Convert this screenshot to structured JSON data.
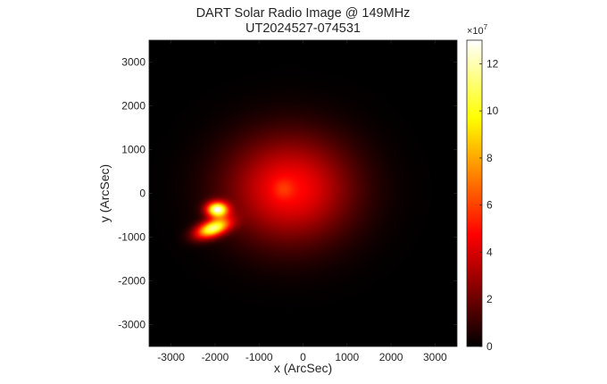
{
  "chart_data": {
    "type": "heatmap",
    "title": "DART Solar Radio Image @ 149MHz",
    "subtitle": "UT2024527-074531",
    "xlabel": "x (ArcSec)",
    "ylabel": "y (ArcSec)",
    "xlim": [
      -3500,
      3500
    ],
    "ylim": [
      -3500,
      3500
    ],
    "xticks": [
      -3000,
      -2000,
      -1000,
      0,
      1000,
      2000,
      3000
    ],
    "yticks": [
      -3000,
      -2000,
      -1000,
      0,
      1000,
      2000,
      3000
    ],
    "colormap": "hot",
    "grid": false,
    "colorbar": {
      "exponent_label": "×10",
      "exponent_power": "7",
      "range": [
        0,
        130000000
      ],
      "ticks": [
        0,
        2,
        4,
        6,
        8,
        10,
        12
      ]
    },
    "sources": [
      {
        "x": -300,
        "y": 100,
        "sx": 1000,
        "sy": 850,
        "peak": 0.38
      },
      {
        "x": -450,
        "y": 100,
        "sx": 160,
        "sy": 160,
        "peak": 0.08
      },
      {
        "x": -1950,
        "y": -370,
        "sx": 170,
        "sy": 120,
        "peak": 0.92
      },
      {
        "x": -2050,
        "y": -800,
        "sx": 280,
        "sy": 130,
        "peak": 0.85,
        "rot": -20
      }
    ],
    "colors": {
      "background": "#000000",
      "text": "#262626"
    }
  }
}
